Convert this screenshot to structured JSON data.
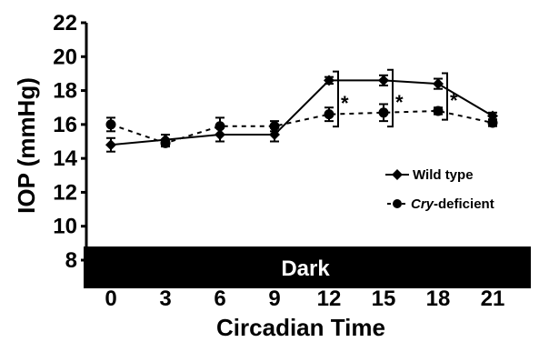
{
  "chart_data": {
    "type": "line",
    "xlabel": "Circadian Time",
    "ylabel": "IOP (mmHg)",
    "x": [
      0,
      3,
      6,
      9,
      12,
      15,
      18,
      21
    ],
    "xticks": [
      "0",
      "3",
      "6",
      "9",
      "12",
      "15",
      "18",
      "21"
    ],
    "yticks": [
      "8",
      "10",
      "12",
      "14",
      "16",
      "18",
      "20",
      "22"
    ],
    "xlim": [
      0,
      21
    ],
    "ylim": [
      8,
      22
    ],
    "series": [
      {
        "name": "Wild type",
        "marker": "diamond",
        "line": "solid",
        "values": [
          14.8,
          15.1,
          15.4,
          15.4,
          18.6,
          18.6,
          18.4,
          16.5
        ],
        "errors": [
          0.4,
          0.3,
          0.4,
          0.4,
          0.2,
          0.3,
          0.3,
          0.2
        ]
      },
      {
        "name": "Cry-deficient",
        "name_prefix": "-",
        "name_italic": "Cry",
        "name_rest": "-deficient",
        "marker": "circle",
        "line": "dashed",
        "values": [
          16.0,
          14.9,
          15.9,
          15.9,
          16.6,
          16.7,
          16.8,
          16.1
        ],
        "errors": [
          0.4,
          0.2,
          0.5,
          0.3,
          0.4,
          0.5,
          0.2,
          0.2
        ]
      }
    ],
    "significance": [
      {
        "x": 12,
        "label": "*"
      },
      {
        "x": 15,
        "label": "*"
      },
      {
        "x": 18,
        "label": "*"
      }
    ],
    "band": {
      "label": "Dark",
      "color": "#000000"
    },
    "legend_position": "right",
    "grid": false
  }
}
